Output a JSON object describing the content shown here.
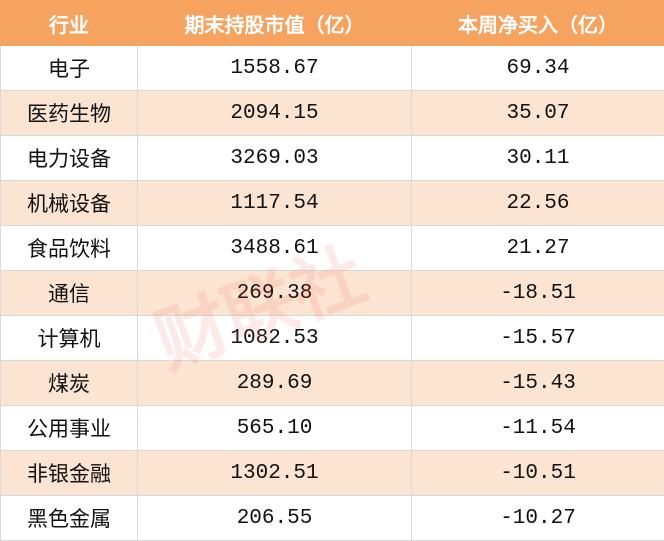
{
  "table": {
    "header": [
      "行业",
      "期末持股市值（亿）",
      "本周净买入（亿）"
    ],
    "rows": [
      [
        "电子",
        "1558.67",
        "69.34"
      ],
      [
        "医药生物",
        "2094.15",
        "35.07"
      ],
      [
        "电力设备",
        "3269.03",
        "30.11"
      ],
      [
        "机械设备",
        "1117.54",
        "22.56"
      ],
      [
        "食品饮料",
        "3488.61",
        "21.27"
      ],
      [
        "通信",
        "269.38",
        "-18.51"
      ],
      [
        "计算机",
        "1082.53",
        "-15.57"
      ],
      [
        "煤炭",
        "289.69",
        "-15.43"
      ],
      [
        "公用事业",
        "565.10",
        "-11.54"
      ],
      [
        "非银金融",
        "1302.51",
        "-10.51"
      ],
      [
        "黑色金属",
        "206.55",
        "-10.27"
      ]
    ]
  },
  "watermark": "财联社"
}
